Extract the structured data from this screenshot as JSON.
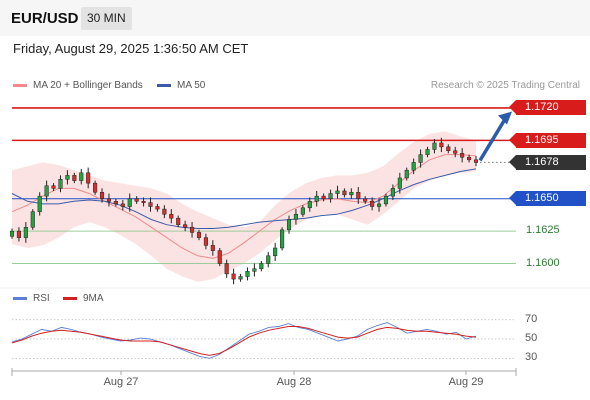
{
  "header": {
    "symbol": "EUR/USD",
    "interval": "30 MIN"
  },
  "datetime": "Friday, August 29, 2025 1:36:50 AM CET",
  "legend": {
    "ma20_bb": "MA 20 + Bollinger Bands",
    "ma50": "MA 50",
    "ma20_color": "#f08a8a",
    "ma50_color": "#3c5aa6"
  },
  "credit": "Research © 2025 Trading Central",
  "rsi_legend": {
    "rsi": "RSI",
    "ma9": "9MA",
    "rsi_color": "#5b7fd6",
    "ma9_color": "#d32020"
  },
  "chart_data": {
    "type": "candlestick",
    "price_ylim": [
      1.1585,
      1.173
    ],
    "levels": [
      {
        "value": 1.172,
        "label": "1.1720",
        "kind": "resistance",
        "color": "#d81b1b"
      },
      {
        "value": 1.1695,
        "label": "1.1695",
        "kind": "resistance",
        "color": "#d81b1b"
      },
      {
        "value": 1.1678,
        "label": "1.1678",
        "kind": "current",
        "color": "#333333"
      },
      {
        "value": 1.165,
        "label": "1.1650",
        "kind": "pivot",
        "color": "#2251c7"
      },
      {
        "value": 1.1625,
        "label": "1.1625",
        "kind": "support",
        "color": "#2e7d32"
      },
      {
        "value": 1.16,
        "label": "1.1600",
        "kind": "support",
        "color": "#2e7d32"
      }
    ],
    "closes": [
      1.1625,
      1.162,
      1.1628,
      1.164,
      1.1652,
      1.166,
      1.1658,
      1.1665,
      1.1668,
      1.1664,
      1.167,
      1.1662,
      1.1655,
      1.165,
      1.1648,
      1.1646,
      1.1644,
      1.165,
      1.1648,
      1.1647,
      1.1644,
      1.1642,
      1.1638,
      1.1635,
      1.163,
      1.1628,
      1.1624,
      1.162,
      1.1614,
      1.161,
      1.16,
      1.1592,
      1.1588,
      1.159,
      1.1594,
      1.1596,
      1.16,
      1.1606,
      1.1612,
      1.1626,
      1.1634,
      1.1638,
      1.1643,
      1.1648,
      1.1652,
      1.165,
      1.1654,
      1.1656,
      1.1653,
      1.1655,
      1.165,
      1.1648,
      1.1644,
      1.1646,
      1.1652,
      1.1658,
      1.1666,
      1.1672,
      1.1678,
      1.1684,
      1.1688,
      1.1693,
      1.169,
      1.1687,
      1.1685,
      1.1682,
      1.168,
      1.1678
    ],
    "bb_upper": [
      1.1672,
      1.1675,
      1.1678,
      1.1676,
      1.1672,
      1.1668,
      1.1664,
      1.1662,
      1.166,
      1.1658,
      1.1654,
      1.1646,
      1.164,
      1.1635,
      1.163,
      1.1628,
      1.1632,
      1.1645,
      1.1655,
      1.1662,
      1.1666,
      1.1668,
      1.1668,
      1.167,
      1.1675,
      1.1685,
      1.1694,
      1.17,
      1.1702,
      1.1698,
      1.1695
    ],
    "bb_lower": [
      1.1615,
      1.1612,
      1.1614,
      1.162,
      1.1628,
      1.1632,
      1.1628,
      1.1622,
      1.1615,
      1.1606,
      1.1596,
      1.159,
      1.1586,
      1.1588,
      1.1594,
      1.16,
      1.1608,
      1.1618,
      1.1627,
      1.1634,
      1.1638,
      1.1638,
      1.1634,
      1.163,
      1.1638,
      1.1648,
      1.1658,
      1.1664,
      1.1668,
      1.167,
      1.1671
    ],
    "ma20": [
      1.164,
      1.1645,
      1.1652,
      1.1658,
      1.1658,
      1.1654,
      1.1648,
      1.1642,
      1.1636,
      1.1628,
      1.162,
      1.1612,
      1.1606,
      1.1604,
      1.1608,
      1.1616,
      1.1625,
      1.1634,
      1.1641,
      1.1646,
      1.1649,
      1.165,
      1.1648,
      1.1647,
      1.1652,
      1.1662,
      1.1672,
      1.168,
      1.1684,
      1.1684,
      1.1683
    ],
    "ma50": [
      1.1654,
      1.1648,
      1.1646,
      1.1646,
      1.1648,
      1.1649,
      1.1648,
      1.1645,
      1.164,
      1.1634,
      1.163,
      1.1628,
      1.1627,
      1.1627,
      1.1628,
      1.163,
      1.1632,
      1.1633,
      1.1634,
      1.1635,
      1.1637,
      1.1638,
      1.1641,
      1.1645,
      1.165,
      1.1656,
      1.1661,
      1.1665,
      1.1668,
      1.1671,
      1.1673
    ],
    "projection": {
      "from": 1.1678,
      "to": 1.1718
    },
    "rsi_ylim": [
      20,
      78
    ],
    "rsi_ticks": [
      70,
      50,
      30
    ],
    "rsi": [
      47,
      50,
      55,
      60,
      58,
      62,
      60,
      57,
      55,
      52,
      50,
      48,
      49,
      51,
      50,
      47,
      44,
      40,
      36,
      32,
      30,
      34,
      41,
      48,
      55,
      58,
      62,
      63,
      66,
      62,
      60,
      56,
      52,
      48,
      50,
      53,
      60,
      64,
      67,
      62,
      56,
      58,
      60,
      58,
      55,
      57,
      50,
      53
    ],
    "rsi_ma9": [
      46,
      49,
      53,
      56,
      58,
      59,
      58,
      57,
      55,
      53,
      51,
      49,
      48,
      48,
      48,
      47,
      44,
      41,
      38,
      35,
      33,
      35,
      40,
      46,
      52,
      56,
      59,
      61,
      63,
      63,
      61,
      58,
      55,
      52,
      51,
      52,
      56,
      60,
      62,
      61,
      59,
      58,
      58,
      57,
      56,
      55,
      53,
      52
    ],
    "x_labels": [
      "Aug 27",
      "Aug 28",
      "Aug 29"
    ]
  }
}
